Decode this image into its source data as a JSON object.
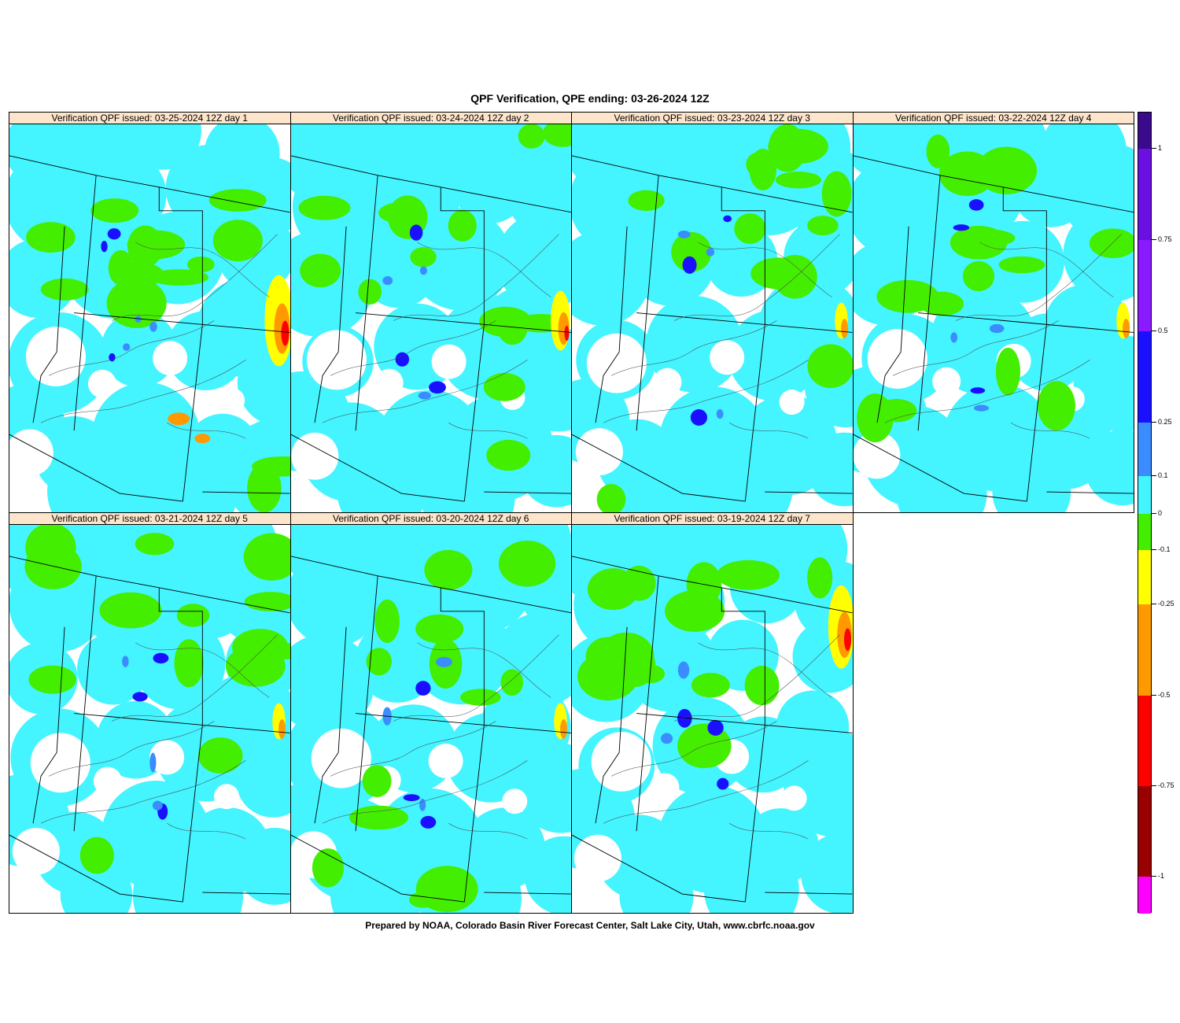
{
  "title": "QPF Verification, QPE ending: 03-26-2024 12Z",
  "footer": "Prepared by NOAA, Colorado Basin River Forecast Center, Salt Lake City, Utah, www.cbrfc.noaa.gov",
  "panels": [
    {
      "label": "Verification  QPF issued: 03-25-2024 12Z day 1",
      "day": 1
    },
    {
      "label": "Verification  QPF issued: 03-24-2024 12Z day 2",
      "day": 2
    },
    {
      "label": "Verification  QPF issued: 03-23-2024 12Z day 3",
      "day": 3
    },
    {
      "label": "Verification  QPF issued: 03-22-2024 12Z day 4",
      "day": 4
    },
    {
      "label": "Verification  QPF issued: 03-21-2024 12Z day 5",
      "day": 5
    },
    {
      "label": "Verification  QPF issued: 03-20-2024 12Z day 6",
      "day": 6
    },
    {
      "label": "Verification  QPF issued: 03-19-2024 12Z day 7",
      "day": 7
    }
  ],
  "legend": {
    "labels": [
      "1",
      "0.75",
      "0.5",
      "0.25",
      "0.1",
      "0",
      "-0.1",
      "-0.25",
      "-0.5",
      "-0.75",
      "-1"
    ],
    "bins": [
      {
        "from": 1.0,
        "to": 1.2,
        "color": "#3a0a8c"
      },
      {
        "from": 0.75,
        "to": 1.0,
        "color": "#6a10e0"
      },
      {
        "from": 0.5,
        "to": 0.75,
        "color": "#8a1aff"
      },
      {
        "from": 0.25,
        "to": 0.5,
        "color": "#1a10ff"
      },
      {
        "from": 0.1,
        "to": 0.25,
        "color": "#3a8cff"
      },
      {
        "from": 0.0,
        "to": 0.1,
        "color": "#44f4ff"
      },
      {
        "from": -0.1,
        "to": 0.0,
        "color": "#44ee00"
      },
      {
        "from": -0.25,
        "to": -0.1,
        "color": "#ffff00"
      },
      {
        "from": -0.5,
        "to": -0.25,
        "color": "#ff9900"
      },
      {
        "from": -0.75,
        "to": -0.5,
        "color": "#ff0000"
      },
      {
        "from": -1.0,
        "to": -0.75,
        "color": "#990000"
      },
      {
        "from": -1.2,
        "to": -1.0,
        "color": "#ff00ff"
      }
    ]
  },
  "colors": {
    "cyan": "#44f4ff",
    "green": "#44ee00",
    "blue": "#1a10ff",
    "lightblue": "#3a8cff",
    "yellow": "#ffff00",
    "orange": "#ff9900",
    "red": "#ff0000",
    "header": "#fde5cc"
  }
}
